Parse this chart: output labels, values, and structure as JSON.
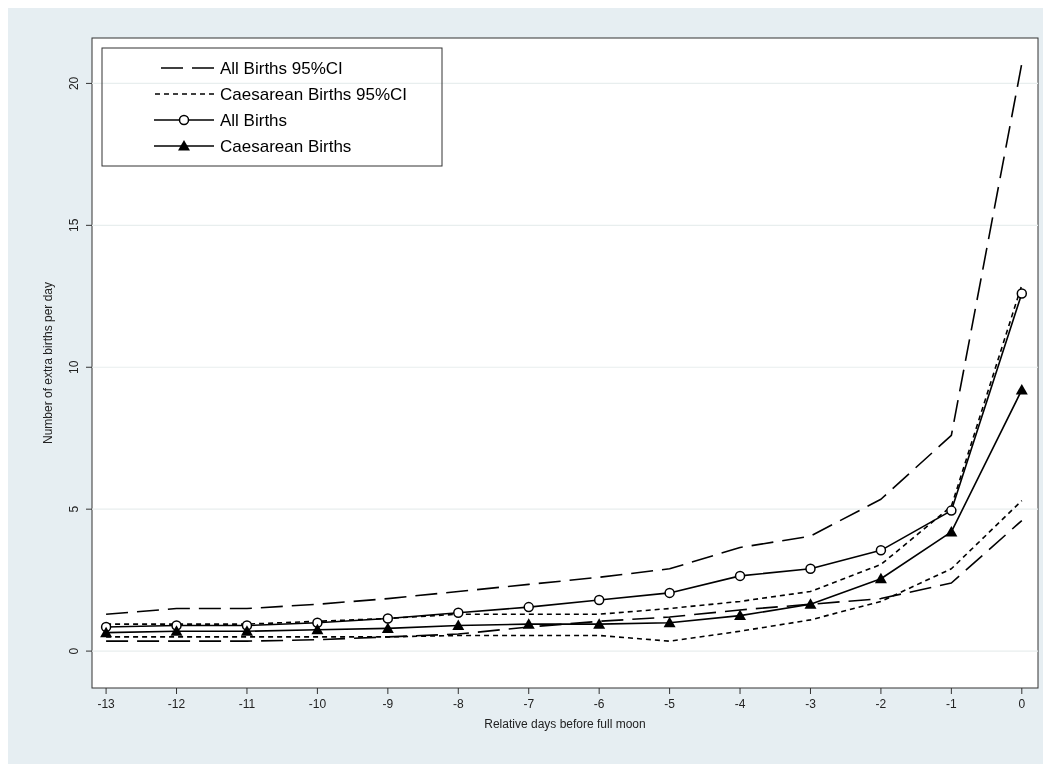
{
  "chart_data": {
    "type": "line",
    "xlabel": "Relative days before full moon",
    "ylabel": "Number of extra births per day",
    "x": [
      -13,
      -12,
      -11,
      -10,
      -9,
      -8,
      -7,
      -6,
      -5,
      -4,
      -3,
      -2,
      -1,
      0
    ],
    "xlim": [
      -13.2,
      0.23
    ],
    "xticks": [
      -13,
      -12,
      -11,
      -10,
      -9,
      -8,
      -7,
      -6,
      -5,
      -4,
      -3,
      -2,
      -1,
      0
    ],
    "ylim": [
      -1.3,
      21.6
    ],
    "yticks": [
      0,
      5,
      10,
      15,
      20
    ],
    "grid": "y",
    "legend": "top left",
    "series": [
      {
        "name": "All Births 95%CI",
        "color": "#000000",
        "line_style": "dashed",
        "marker": "none",
        "values": [
          1.3,
          1.5,
          1.5,
          1.65,
          1.85,
          2.1,
          2.35,
          2.6,
          2.9,
          3.65,
          4.05,
          5.35,
          7.6,
          20.7
        ]
      },
      {
        "color": "#000000",
        "line_style": "dashed",
        "marker": "none",
        "values": [
          0.35,
          0.35,
          0.35,
          0.4,
          0.5,
          0.6,
          0.85,
          1.05,
          1.2,
          1.45,
          1.65,
          1.85,
          2.4,
          4.6
        ]
      },
      {
        "name": "Caesarean Births 95%CI",
        "color": "#000000",
        "line_style": "dotted",
        "marker": "none",
        "values": [
          0.95,
          0.95,
          0.95,
          1.05,
          1.15,
          1.3,
          1.3,
          1.3,
          1.5,
          1.75,
          2.1,
          3.05,
          5.1,
          12.9
        ]
      },
      {
        "color": "#000000",
        "line_style": "dotted",
        "marker": "none",
        "values": [
          0.5,
          0.5,
          0.5,
          0.5,
          0.5,
          0.55,
          0.55,
          0.55,
          0.35,
          0.7,
          1.1,
          1.75,
          2.9,
          5.3
        ]
      },
      {
        "name": "All Births",
        "color": "#000000",
        "line_style": "solid",
        "marker": "circle",
        "values": [
          0.85,
          0.9,
          0.9,
          1.0,
          1.15,
          1.35,
          1.55,
          1.8,
          2.05,
          2.65,
          2.9,
          3.55,
          4.95,
          12.6
        ]
      },
      {
        "name": "Caesarean Births",
        "color": "#000000",
        "line_style": "solid",
        "marker": "triangle",
        "values": [
          0.65,
          0.7,
          0.7,
          0.75,
          0.8,
          0.9,
          0.95,
          0.95,
          1.0,
          1.25,
          1.65,
          2.55,
          4.2,
          9.2
        ]
      }
    ]
  }
}
